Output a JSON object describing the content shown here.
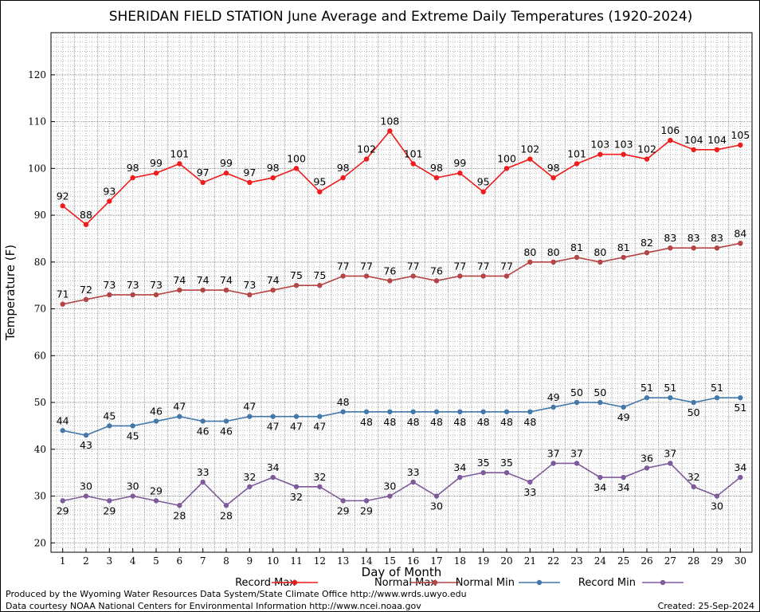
{
  "chart_data": {
    "type": "line",
    "title": "SHERIDAN FIELD STATION June Average and Extreme Daily Temperatures (1920-2024)",
    "xlabel": "Day of Month",
    "ylabel": "Temperature (F)",
    "ylim": [
      18,
      129
    ],
    "yticks": [
      20,
      30,
      40,
      50,
      60,
      70,
      80,
      90,
      100,
      110,
      120
    ],
    "xlim": [
      0.5,
      30.5
    ],
    "x": [
      1,
      2,
      3,
      4,
      5,
      6,
      7,
      8,
      9,
      10,
      11,
      12,
      13,
      14,
      15,
      16,
      17,
      18,
      19,
      20,
      21,
      22,
      23,
      24,
      25,
      26,
      27,
      28,
      29,
      30
    ],
    "grid": "on",
    "legend_placement": "bottom",
    "series": [
      {
        "name": "Record Max",
        "color": "#ee1c1c",
        "values": [
          92,
          88,
          93,
          98,
          99,
          101,
          97,
          99,
          97,
          98,
          100,
          95,
          98,
          102,
          108,
          101,
          98,
          99,
          95,
          100,
          102,
          98,
          101,
          103,
          103,
          102,
          106,
          104,
          104,
          105
        ]
      },
      {
        "name": "Normal Max",
        "color": "#b54545",
        "values": [
          71,
          72,
          73,
          73,
          73,
          74,
          74,
          74,
          73,
          74,
          75,
          75,
          77,
          77,
          76,
          77,
          76,
          77,
          77,
          77,
          80,
          80,
          81,
          80,
          81,
          82,
          83,
          83,
          83,
          84
        ]
      },
      {
        "name": "Normal Min",
        "color": "#4477aa",
        "values": [
          44,
          43,
          45,
          45,
          46,
          47,
          46,
          46,
          47,
          47,
          47,
          47,
          48,
          48,
          48,
          48,
          48,
          48,
          48,
          48,
          48,
          49,
          50,
          50,
          49,
          51,
          51,
          50,
          51,
          51
        ]
      },
      {
        "name": "Record Min",
        "color": "#7e5a9b",
        "values": [
          29,
          30,
          29,
          30,
          29,
          28,
          33,
          28,
          32,
          34,
          32,
          32,
          29,
          29,
          30,
          33,
          30,
          34,
          35,
          35,
          33,
          37,
          37,
          34,
          34,
          36,
          37,
          32,
          30,
          34
        ]
      }
    ]
  },
  "footer": {
    "producer": "Produced by the Wyoming Water Resources Data System/State Climate Office http://www.wrds.uwyo.edu",
    "source": "Data courtesy NOAA National Centers for Environmental Information http://www.ncei.noaa.gov",
    "created": "Created:  25-Sep-2024"
  }
}
